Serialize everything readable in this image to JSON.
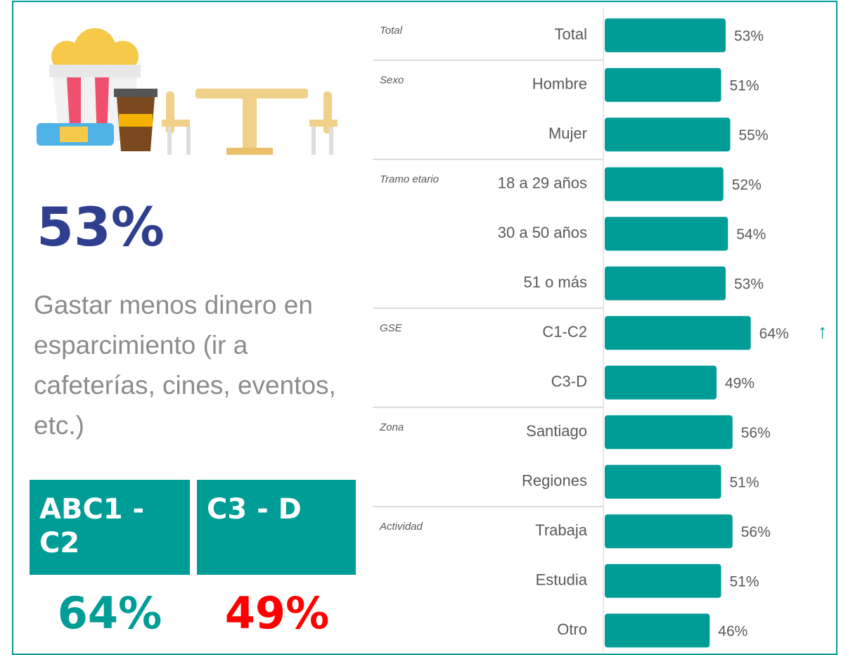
{
  "headline": "53%",
  "description": "Gastar menos dinero en esparcimiento (ir a cafeterías, cines, eventos, etc.)",
  "segments": [
    {
      "label": "ABC1 - C2",
      "value": "64%"
    },
    {
      "label": "C3 - D",
      "value": "49%"
    }
  ],
  "chart_data": {
    "type": "bar",
    "orientation": "horizontal",
    "color": "#009c96",
    "groups": [
      {
        "label": "Total",
        "categories": [
          "Total"
        ],
        "values": [
          53
        ],
        "value_labels": [
          "53%"
        ]
      },
      {
        "label": "Sexo",
        "categories": [
          "Hombre",
          "Mujer"
        ],
        "values": [
          51,
          55
        ],
        "value_labels": [
          "51%",
          "55%"
        ]
      },
      {
        "label": "Tramo etario",
        "categories": [
          "18 a 29 años",
          "30 a 50 años",
          "51 o más"
        ],
        "values": [
          52,
          54,
          53
        ],
        "value_labels": [
          "52%",
          "54%",
          "53%"
        ]
      },
      {
        "label": "GSE",
        "categories": [
          "C1-C2",
          "C3-D"
        ],
        "values": [
          64,
          49
        ],
        "value_labels": [
          "64%",
          "49%"
        ],
        "markers": [
          "↑",
          null
        ]
      },
      {
        "label": "Zona",
        "categories": [
          "Santiago",
          "Regiones"
        ],
        "values": [
          56,
          51
        ],
        "value_labels": [
          "56%",
          "51%"
        ]
      },
      {
        "label": "Actividad",
        "categories": [
          "Trabaja",
          "Estudia",
          "Otro"
        ],
        "values": [
          56,
          51,
          46
        ],
        "value_labels": [
          "56%",
          "51%",
          "46%"
        ]
      }
    ]
  }
}
